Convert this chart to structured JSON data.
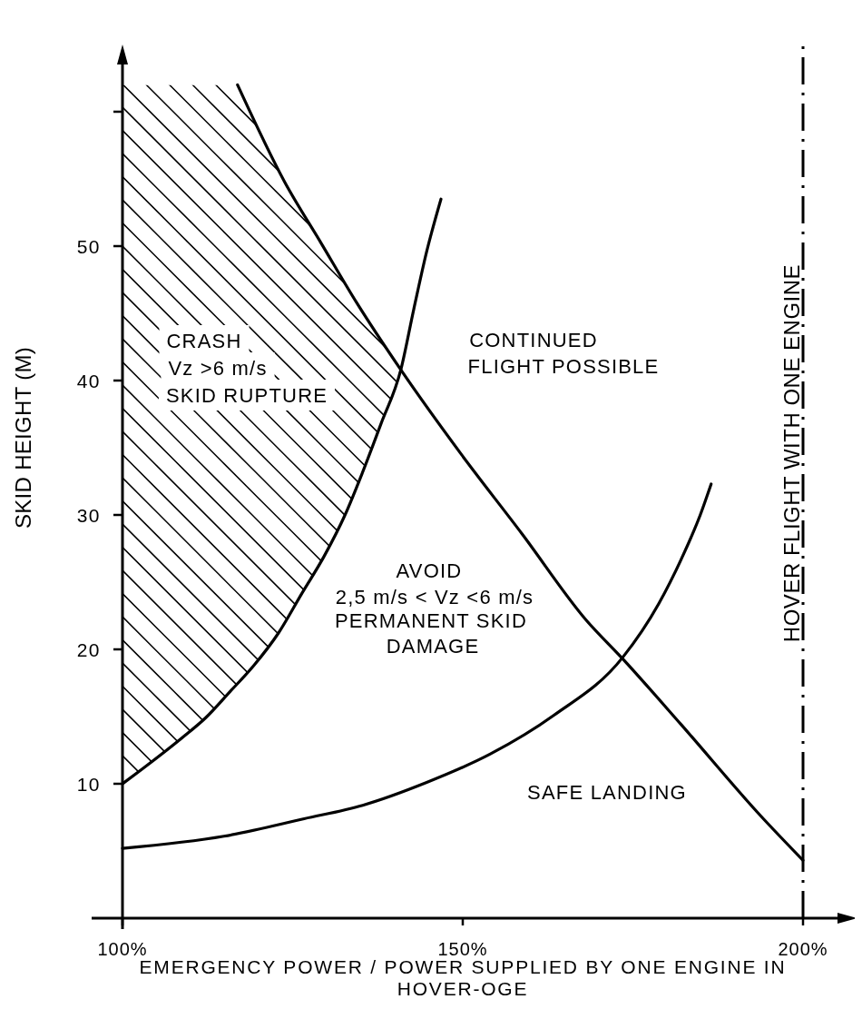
{
  "chart_data": {
    "type": "line",
    "xlabel": "EMERGENCY POWER / POWER SUPPLIED BY ONE ENGINE IN HOVER-OGE",
    "ylabel": "SKID HEIGHT (M)",
    "xlim": [
      100,
      208
    ],
    "ylim": [
      0,
      65
    ],
    "xticks": [
      {
        "value": 100,
        "label": "100%"
      },
      {
        "value": 150,
        "label": "150%"
      },
      {
        "value": 200,
        "label": "200%"
      }
    ],
    "yticks": [
      10,
      20,
      30,
      40,
      50,
      {
        "value": 60,
        "label": null
      }
    ],
    "series": [
      {
        "color": "#000000",
        "x": [
          100,
          102.9,
          108.7,
          112.2,
          115.7,
          119.3,
          122.9,
          126.4,
          129.6,
          132.7,
          135.3,
          138,
          140.9,
          142.8,
          144.7,
          146.8
        ],
        "values": [
          10,
          11.1,
          13.4,
          14.9,
          16.8,
          18.8,
          21.2,
          24.2,
          26.9,
          30,
          33.2,
          36.8,
          40.8,
          45.3,
          49.6,
          53.5
        ]
      },
      {
        "color": "#000000",
        "x": [
          100,
          114.9,
          126.7,
          135.3,
          144.7,
          154,
          163.4,
          173.5,
          178.8,
          182.1,
          184.9,
          186.5
        ],
        "values": [
          5.2,
          6.1,
          7.4,
          8.4,
          10.1,
          12.2,
          15.1,
          19.4,
          23.4,
          26.7,
          30,
          32.3
        ]
      },
      {
        "color": "#000000",
        "x": [
          116.9,
          123.8,
          129.1,
          134.4,
          140.9,
          149.8,
          158.7,
          168.1,
          173.5,
          182.1,
          193.8,
          200
        ],
        "values": [
          62,
          54.8,
          50.3,
          45.8,
          40.8,
          34.5,
          28.6,
          22.2,
          19.3,
          14.4,
          7.6,
          4.3
        ]
      }
    ],
    "ref_lines": [
      {
        "axis": "x",
        "value": 200,
        "label": "HOVER FLIGHT WITH ONE ENGINE",
        "line_style": "dashdot",
        "color": "#000000"
      }
    ],
    "annotations": [
      "CRASH",
      "Vz >6 m/s",
      "SKID RUPTURE",
      "CONTINUED",
      "FLIGHT POSSIBLE",
      "AVOID",
      "2,5 m/s < Vz <6 m/s",
      "PERMANENT SKID",
      "DAMAGE",
      "SAFE LANDING"
    ]
  }
}
